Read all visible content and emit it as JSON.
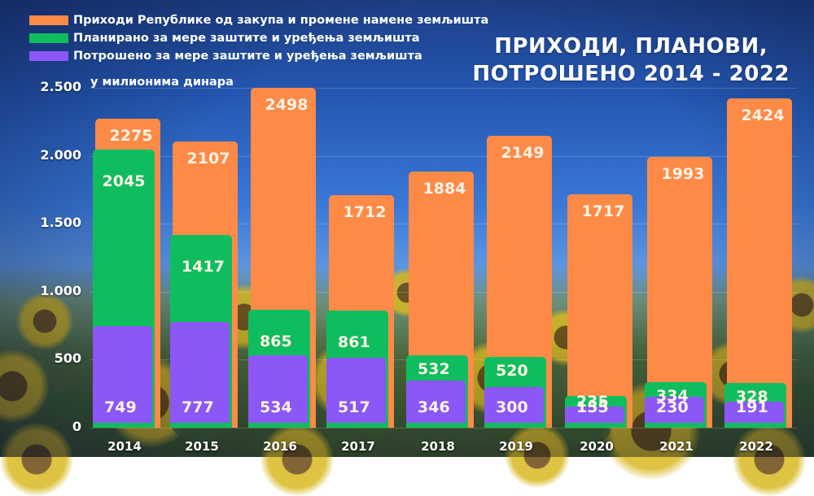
{
  "colors": {
    "income": "#fd8a47",
    "planned": "#10bd5e",
    "spent": "#8b57f6",
    "background_top": "#1d3f86"
  },
  "legend": [
    {
      "label": "Приходи Републике од закупа и промене намене земљишта",
      "color": "#fd8a47"
    },
    {
      "label": "Планирано за мере заштите и уређења земљишта",
      "color": "#10bd5e"
    },
    {
      "label": "Потрошено за мере заштите и уређења земљишта",
      "color": "#8b57f6"
    }
  ],
  "title_line1": "ПРИХОДИ, ПЛАНОВИ,",
  "title_line2": "ПОТРОШЕНО 2014 - 2022",
  "unit_label": "у милионима динара",
  "yticks": [
    "2.500",
    "2.000",
    "1.500",
    "1.000",
    "500",
    "0"
  ],
  "chart_data": {
    "type": "bar",
    "title": "ПРИХОДИ, ПЛАНОВИ, ПОТРОШЕНО 2014 - 2022",
    "subtitle": "у милионима динара",
    "xlabel": "",
    "ylabel": "у милионима динара",
    "ylim": [
      0,
      2500
    ],
    "yticks": [
      0,
      500,
      1000,
      1500,
      2000,
      2500
    ],
    "grid": true,
    "legend_position": "top-left",
    "bar_mode": "overlay",
    "categories": [
      "2014",
      "2015",
      "2016",
      "2017",
      "2018",
      "2019",
      "2020",
      "2021",
      "2022"
    ],
    "series": [
      {
        "name": "Приходи Републике од закупа и промене намене земљишта",
        "color": "#fd8a47",
        "values": [
          2275,
          2107,
          2498,
          1712,
          1884,
          2149,
          1717,
          1993,
          2424
        ]
      },
      {
        "name": "Планирано за мере заштите и уређења земљишта",
        "color": "#10bd5e",
        "values": [
          2045,
          1417,
          865,
          861,
          532,
          520,
          235,
          334,
          328
        ]
      },
      {
        "name": "Потрошено за мере заштите и уређења земљишта",
        "color": "#8b57f6",
        "values": [
          749,
          777,
          534,
          517,
          346,
          300,
          155,
          230,
          191
        ]
      }
    ]
  }
}
